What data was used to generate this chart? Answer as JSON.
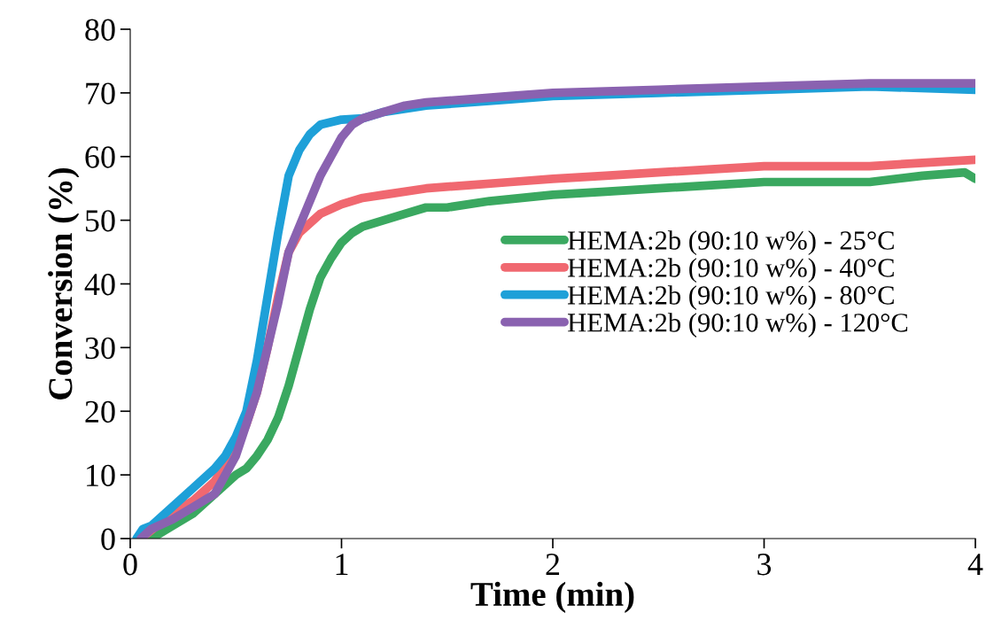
{
  "chart_data": {
    "type": "line",
    "xlabel": "Time (min)",
    "ylabel": "Conversion (%)",
    "xlim": [
      0,
      4
    ],
    "xticks": [
      0,
      1,
      2,
      3,
      4
    ],
    "ylim": [
      0,
      80
    ],
    "yticks": [
      0,
      10,
      20,
      30,
      40,
      50,
      60,
      70,
      80
    ],
    "grid": false,
    "legend": "right",
    "marker": "none",
    "line_style": "solid",
    "series": [
      {
        "name": "HEMA:2b (90:10 w%) - 25°C",
        "color": "#3aa860",
        "x": [
          0.1,
          0.2,
          0.3,
          0.4,
          0.5,
          0.55,
          0.6,
          0.65,
          0.7,
          0.75,
          0.8,
          0.85,
          0.9,
          0.95,
          1.0,
          1.05,
          1.1,
          1.2,
          1.3,
          1.4,
          1.5,
          1.7,
          2.0,
          2.25,
          2.5,
          2.75,
          3.0,
          3.25,
          3.5,
          3.75,
          3.95,
          4.0
        ],
        "values": [
          0,
          2,
          4,
          7,
          10,
          11,
          13,
          15.5,
          19,
          24,
          30,
          36,
          41,
          44,
          46.5,
          48,
          49,
          50,
          51,
          52,
          52,
          53,
          54,
          54.5,
          55,
          55.5,
          56,
          56,
          56,
          57,
          57.5,
          56.5
        ]
      },
      {
        "name": "HEMA:2b (90:10 w%) - 40°C",
        "color": "#f06870",
        "x": [
          0.05,
          0.2,
          0.3,
          0.4,
          0.5,
          0.55,
          0.6,
          0.65,
          0.7,
          0.75,
          0.8,
          0.85,
          0.9,
          1.0,
          1.1,
          1.2,
          1.4,
          1.6,
          1.8,
          2.0,
          2.25,
          2.5,
          2.75,
          3.0,
          3.25,
          3.5,
          3.75,
          4.0
        ],
        "values": [
          0,
          4,
          6,
          9,
          14,
          18,
          23,
          30,
          38,
          45,
          48,
          49.5,
          51,
          52.5,
          53.5,
          54,
          55,
          55.5,
          56,
          56.5,
          57,
          57.5,
          58,
          58.5,
          58.5,
          58.5,
          59,
          59.5
        ]
      },
      {
        "name": "HEMA:2b (90:10 w%) - 80°C",
        "color": "#1ea0d8",
        "x": [
          0.03,
          0.06,
          0.1,
          0.2,
          0.3,
          0.4,
          0.45,
          0.5,
          0.55,
          0.6,
          0.65,
          0.7,
          0.75,
          0.8,
          0.85,
          0.9,
          1.0,
          1.1,
          1.2,
          1.4,
          1.6,
          1.8,
          2.0,
          2.5,
          3.0,
          3.5,
          4.0
        ],
        "values": [
          0,
          1.5,
          2,
          5,
          8,
          11,
          13,
          16,
          20,
          28,
          38,
          48,
          57,
          61,
          63.5,
          65,
          65.8,
          66,
          67,
          68,
          68.5,
          69,
          69.5,
          70,
          70.5,
          71,
          70.5
        ]
      },
      {
        "name": "HEMA:2b (90:10 w%) - 120°C",
        "color": "#8a62b0",
        "x": [
          0.05,
          0.1,
          0.2,
          0.3,
          0.4,
          0.5,
          0.55,
          0.6,
          0.65,
          0.7,
          0.75,
          0.8,
          0.85,
          0.9,
          0.95,
          1.0,
          1.05,
          1.1,
          1.2,
          1.3,
          1.4,
          1.6,
          1.8,
          2.0,
          2.5,
          3.0,
          3.5,
          4.0
        ],
        "values": [
          0,
          1.5,
          3,
          5,
          7,
          13,
          18,
          23,
          30,
          37,
          45,
          49,
          53,
          57,
          60,
          63,
          65,
          66,
          67,
          68,
          68.5,
          69,
          69.5,
          70,
          70.5,
          71,
          71.5,
          71.5
        ]
      }
    ]
  }
}
